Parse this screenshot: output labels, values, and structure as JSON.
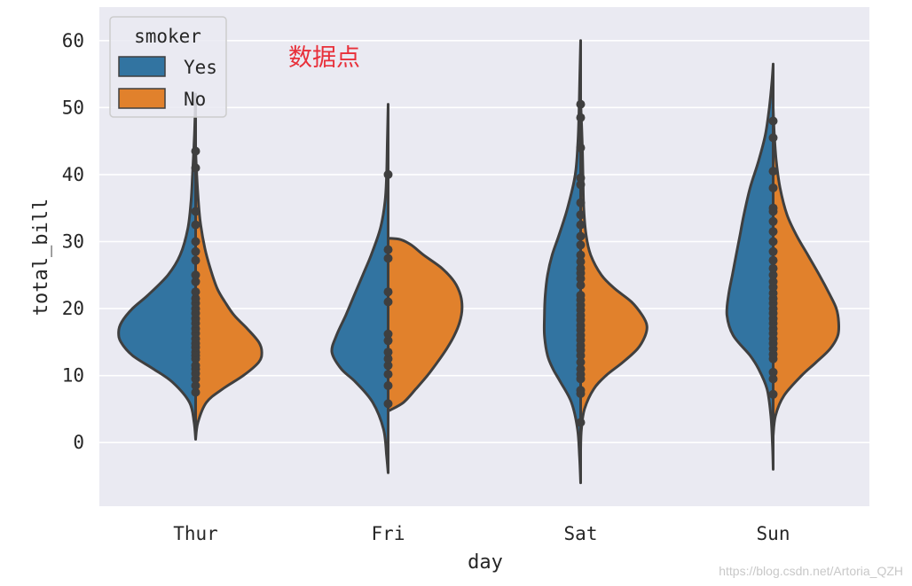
{
  "chart_data": {
    "type": "violin",
    "split": true,
    "inner": "point",
    "xlabel": "day",
    "ylabel": "total_bill",
    "categories": [
      "Thur",
      "Fri",
      "Sat",
      "Sun"
    ],
    "ylim": [
      -9.5,
      65
    ],
    "yticks": [
      0,
      10,
      20,
      30,
      40,
      50,
      60
    ],
    "grid": true,
    "legend": {
      "title": "smoker",
      "placement": "top-left",
      "entries": [
        {
          "name": "Yes",
          "color": "#3274a1"
        },
        {
          "name": "No",
          "color": "#e1812c"
        }
      ]
    },
    "series": [
      {
        "name": "Yes",
        "color": "#3274a1",
        "violins": [
          {
            "category": "Thur",
            "min": 0.5,
            "max": 52,
            "profile": [
              [
                0.5,
                0
              ],
              [
                3,
                0.02
              ],
              [
                6,
                0.08
              ],
              [
                9,
                0.3
              ],
              [
                11,
                0.55
              ],
              [
                13,
                0.82
              ],
              [
                15,
                0.97
              ],
              [
                16.5,
                1.0
              ],
              [
                18,
                0.96
              ],
              [
                20,
                0.82
              ],
              [
                22,
                0.62
              ],
              [
                25,
                0.36
              ],
              [
                28,
                0.2
              ],
              [
                32,
                0.1
              ],
              [
                36,
                0.06
              ],
              [
                40,
                0.04
              ],
              [
                46,
                0.015
              ],
              [
                52,
                0
              ]
            ]
          },
          {
            "category": "Fri",
            "min": -4.5,
            "max": 50.5,
            "profile": [
              [
                -4.5,
                0
              ],
              [
                -2,
                0.02
              ],
              [
                2,
                0.06
              ],
              [
                6,
                0.2
              ],
              [
                9,
                0.42
              ],
              [
                11,
                0.61
              ],
              [
                13.5,
                0.73
              ],
              [
                16,
                0.67
              ],
              [
                19,
                0.55
              ],
              [
                22,
                0.44
              ],
              [
                25,
                0.33
              ],
              [
                28,
                0.22
              ],
              [
                32,
                0.1
              ],
              [
                36,
                0.04
              ],
              [
                40,
                0.02
              ],
              [
                45,
                0.01
              ],
              [
                50.5,
                0
              ]
            ]
          },
          {
            "category": "Sat",
            "min": -6,
            "max": 60,
            "profile": [
              [
                -6,
                0
              ],
              [
                -2,
                0.015
              ],
              [
                2,
                0.04
              ],
              [
                6,
                0.12
              ],
              [
                9,
                0.26
              ],
              [
                11,
                0.36
              ],
              [
                13,
                0.43
              ],
              [
                16,
                0.47
              ],
              [
                19,
                0.47
              ],
              [
                22,
                0.46
              ],
              [
                25,
                0.43
              ],
              [
                28,
                0.37
              ],
              [
                31,
                0.28
              ],
              [
                35,
                0.17
              ],
              [
                40,
                0.07
              ],
              [
                45,
                0.035
              ],
              [
                50,
                0.02
              ],
              [
                55,
                0.01
              ],
              [
                60,
                0
              ]
            ]
          },
          {
            "category": "Sun",
            "min": -4,
            "max": 56.5,
            "profile": [
              [
                -4,
                0
              ],
              [
                0,
                0.01
              ],
              [
                4,
                0.03
              ],
              [
                8,
                0.08
              ],
              [
                11,
                0.19
              ],
              [
                13,
                0.3
              ],
              [
                16,
                0.52
              ],
              [
                19,
                0.6
              ],
              [
                22,
                0.58
              ],
              [
                25,
                0.53
              ],
              [
                28,
                0.48
              ],
              [
                31,
                0.43
              ],
              [
                34,
                0.38
              ],
              [
                38,
                0.3
              ],
              [
                42,
                0.19
              ],
              [
                46,
                0.1
              ],
              [
                50,
                0.05
              ],
              [
                54,
                0.015
              ],
              [
                56.5,
                0
              ]
            ]
          }
        ],
        "points": [
          {
            "category": "Thur",
            "values": [
              7.5,
              8.5,
              9.5,
              10.3,
              11,
              11.5,
              12.5,
              13,
              13.5,
              14.2,
              14.8,
              15.5,
              16.3,
              17,
              17.8,
              18.5,
              19.3,
              20,
              20.8,
              21.5,
              22.5,
              24,
              25,
              27.2,
              28.5,
              30,
              32.5,
              34.5,
              41,
              43.5
            ]
          },
          {
            "category": "Fri",
            "values": [
              5.8,
              8.5,
              10.2,
              11.5,
              12.5,
              13.5,
              15.2,
              16.2,
              21,
              22.5,
              27.5,
              28.8,
              40
            ]
          },
          {
            "category": "Sat",
            "values": [
              3,
              7.3,
              7.8,
              9.5,
              10.2,
              11,
              12,
              13,
              13.8,
              14.5,
              15.3,
              16,
              16.8,
              17.5,
              18.3,
              19,
              19.8,
              20.5,
              21.3,
              22,
              23.5,
              24.5,
              25.3,
              26,
              27,
              28,
              29.5,
              30.8,
              32.5,
              34,
              35.8,
              38.5,
              39.5,
              44,
              48.5,
              50.5
            ]
          },
          {
            "category": "Sun",
            "values": [
              7.2,
              9.5,
              10.5,
              12.5,
              13.2,
              14,
              14.8,
              15.5,
              16.3,
              17,
              17.8,
              18.5,
              19.3,
              20,
              20.8,
              21.5,
              22.3,
              23.2,
              24,
              25,
              26,
              27.2,
              28.5,
              30,
              31.5,
              33,
              34.5,
              35,
              38,
              40.5,
              45.5,
              48
            ]
          }
        ]
      },
      {
        "name": "No",
        "color": "#e1812c",
        "violins": [
          {
            "category": "Thur",
            "min": 0.5,
            "max": 44,
            "profile": [
              [
                0.5,
                0
              ],
              [
                3,
                0.03
              ],
              [
                6,
                0.14
              ],
              [
                8,
                0.35
              ],
              [
                10,
                0.62
              ],
              [
                12,
                0.82
              ],
              [
                13.5,
                0.86
              ],
              [
                15,
                0.82
              ],
              [
                17,
                0.67
              ],
              [
                19,
                0.5
              ],
              [
                21,
                0.38
              ],
              [
                23,
                0.28
              ],
              [
                26,
                0.19
              ],
              [
                29,
                0.12
              ],
              [
                33,
                0.06
              ],
              [
                37,
                0.03
              ],
              [
                41,
                0.01
              ],
              [
                44,
                0
              ]
            ]
          },
          {
            "category": "Fri",
            "min": 4.8,
            "max": 30.5,
            "profile": [
              [
                4.8,
                0.02
              ],
              [
                6,
                0.2
              ],
              [
                8,
                0.36
              ],
              [
                10,
                0.51
              ],
              [
                12,
                0.64
              ],
              [
                14,
                0.76
              ],
              [
                16,
                0.86
              ],
              [
                18,
                0.93
              ],
              [
                20,
                0.96
              ],
              [
                22,
                0.94
              ],
              [
                24,
                0.86
              ],
              [
                26,
                0.7
              ],
              [
                28,
                0.46
              ],
              [
                29.5,
                0.3
              ],
              [
                30.3,
                0.16
              ],
              [
                30.5,
                0
              ]
            ]
          },
          {
            "category": "Sat",
            "min": -1,
            "max": 51,
            "profile": [
              [
                -1,
                0
              ],
              [
                2,
                0.01
              ],
              [
                5,
                0.05
              ],
              [
                8,
                0.17
              ],
              [
                10,
                0.33
              ],
              [
                12,
                0.55
              ],
              [
                14,
                0.74
              ],
              [
                16,
                0.84
              ],
              [
                17.5,
                0.86
              ],
              [
                19,
                0.8
              ],
              [
                21,
                0.66
              ],
              [
                23,
                0.44
              ],
              [
                25,
                0.27
              ],
              [
                28,
                0.13
              ],
              [
                31,
                0.07
              ],
              [
                35,
                0.04
              ],
              [
                40,
                0.03
              ],
              [
                45,
                0.02
              ],
              [
                51,
                0
              ]
            ]
          },
          {
            "category": "Sun",
            "min": 1,
            "max": 50,
            "profile": [
              [
                1,
                0
              ],
              [
                4,
                0.03
              ],
              [
                7,
                0.14
              ],
              [
                10,
                0.37
              ],
              [
                12,
                0.56
              ],
              [
                14,
                0.74
              ],
              [
                16,
                0.84
              ],
              [
                18,
                0.85
              ],
              [
                20,
                0.82
              ],
              [
                22,
                0.74
              ],
              [
                25,
                0.6
              ],
              [
                28,
                0.45
              ],
              [
                31,
                0.3
              ],
              [
                34,
                0.18
              ],
              [
                38,
                0.09
              ],
              [
                42,
                0.04
              ],
              [
                46,
                0.015
              ],
              [
                50,
                0
              ]
            ]
          }
        ]
      }
    ]
  },
  "annotation": {
    "text": "数据点",
    "color": "#e8303a"
  },
  "watermark": "https://blog.csdn.net/Artoria_QZH"
}
